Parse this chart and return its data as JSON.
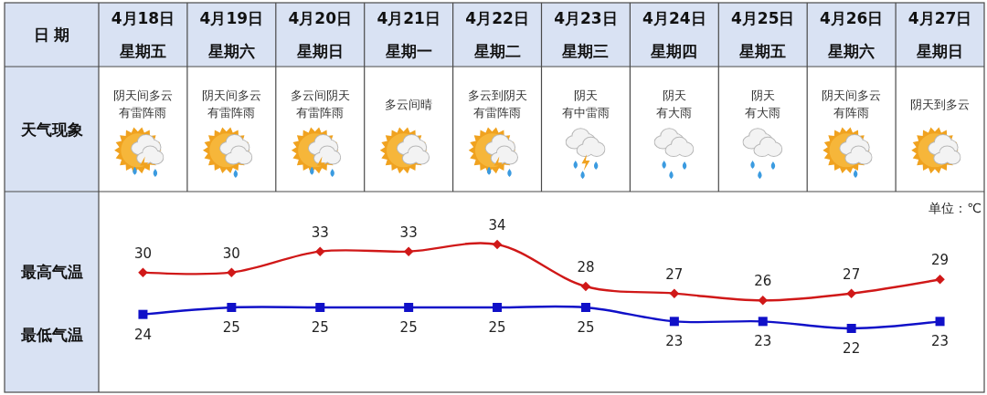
{
  "chart_data": {
    "type": "line",
    "xlabel": "日 期",
    "ylabel": "单位：℃",
    "categories": [
      "4月18日星期五",
      "4月19日星期六",
      "4月20日星期日",
      "4月21日星期一",
      "4月22日星期二",
      "4月23日星期三",
      "4月24日星期四",
      "4月25日星期五",
      "4月26日星期六",
      "4月27日星期日"
    ],
    "series": [
      {
        "color": "#d01818",
        "marker": "diamond",
        "values": [
          30,
          30,
          33,
          33,
          34,
          28,
          27,
          26,
          27,
          29
        ]
      },
      {
        "color": "#1010c8",
        "marker": "square",
        "values": [
          24,
          25,
          25,
          25,
          25,
          25,
          23,
          23,
          22,
          23
        ]
      }
    ],
    "data_labels": true,
    "line_style": "solid",
    "annotations": [
      "天气现象",
      "阴天间多云",
      "有雷阵雨",
      "阴天间多云",
      "有雷阵雨",
      "多云间阴天",
      "有雷阵雨",
      "多云间晴",
      "多云到阴天",
      "有雷阵雨",
      "阴天",
      "有中雷雨",
      "阴天",
      "有大雨",
      "阴天",
      "有大雨",
      "阴天间多云",
      "有阵雨",
      "阴天到多云",
      "最高气温",
      "最低气温"
    ]
  }
}
